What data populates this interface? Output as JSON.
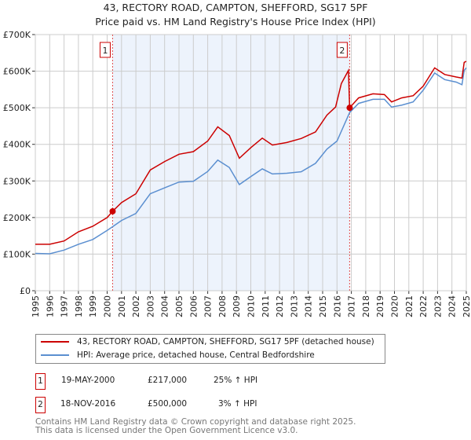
{
  "chart_data": {
    "type": "line",
    "title": "43, RECTORY ROAD, CAMPTON, SHEFFORD, SG17 5PF",
    "subtitle": "Price paid vs. HM Land Registry's House Price Index (HPI)",
    "xlim": [
      1995,
      2025
    ],
    "ylim": [
      0,
      700000
    ],
    "x_ticks": [
      "1995",
      "1996",
      "1997",
      "1998",
      "1999",
      "2000",
      "2001",
      "2002",
      "2003",
      "2004",
      "2005",
      "2006",
      "2007",
      "2008",
      "2009",
      "2010",
      "2011",
      "2012",
      "2013",
      "2014",
      "2015",
      "2016",
      "2017",
      "2018",
      "2019",
      "2020",
      "2021",
      "2022",
      "2023",
      "2024",
      "2025"
    ],
    "y_ticks": [
      {
        "value": 0,
        "label": "£0"
      },
      {
        "value": 100000,
        "label": "£100K"
      },
      {
        "value": 200000,
        "label": "£200K"
      },
      {
        "value": 300000,
        "label": "£300K"
      },
      {
        "value": 400000,
        "label": "£400K"
      },
      {
        "value": 500000,
        "label": "£500K"
      },
      {
        "value": 600000,
        "label": "£600K"
      },
      {
        "value": 700000,
        "label": "£700K"
      }
    ],
    "grid": true,
    "shaded_range": [
      2000.38,
      2016.88
    ],
    "series": [
      {
        "name": "43, RECTORY ROAD, CAMPTON, SHEFFORD, SG17 5PF (detached house)",
        "color": "#cc0000",
        "x": [
          1995,
          1996,
          1997,
          1998,
          1999,
          2000,
          2000.38,
          2001,
          2002,
          2003,
          2004,
          2005,
          2006,
          2007,
          2007.7,
          2008.5,
          2009.2,
          2010,
          2010.8,
          2011.5,
          2012.5,
          2013.5,
          2014.5,
          2015.3,
          2015.9,
          2016.3,
          2016.8,
          2016.88,
          2017.5,
          2018.5,
          2019.3,
          2019.8,
          2020.5,
          2021.3,
          2022,
          2022.8,
          2023.5,
          2024.3,
          2024.7,
          2024.85,
          2025
        ],
        "y": [
          127000,
          127000,
          136000,
          161000,
          176000,
          200000,
          217000,
          241000,
          265000,
          330000,
          353000,
          373000,
          380000,
          409000,
          448000,
          424000,
          362000,
          391000,
          417000,
          398000,
          405000,
          416000,
          434000,
          480000,
          502000,
          566000,
          602000,
          500000,
          527000,
          538000,
          536000,
          516000,
          527000,
          533000,
          559000,
          609000,
          591000,
          584000,
          581000,
          624000,
          627000
        ]
      },
      {
        "name": "HPI: Average price, detached house, Central Bedfordshire",
        "color": "#5b8fd0",
        "x": [
          1995,
          1996,
          1997,
          1998,
          1999,
          2000,
          2000.38,
          2001,
          2002,
          2003,
          2004,
          2005,
          2006,
          2007,
          2007.7,
          2008.5,
          2009.2,
          2010,
          2010.8,
          2011.5,
          2012.5,
          2013.5,
          2014.5,
          2015.3,
          2016,
          2016.88,
          2017.5,
          2018.5,
          2019.3,
          2019.8,
          2020.5,
          2021.3,
          2022,
          2022.8,
          2023.5,
          2024.3,
          2024.7,
          2024.85,
          2025
        ],
        "y": [
          102000,
          101000,
          111000,
          127000,
          140000,
          165000,
          175000,
          192000,
          211000,
          265000,
          281000,
          297000,
          299000,
          326000,
          357000,
          337000,
          290000,
          312000,
          333000,
          319000,
          321000,
          325000,
          348000,
          387000,
          409000,
          487000,
          512000,
          523000,
          523000,
          502000,
          507000,
          516000,
          548000,
          595000,
          577000,
          570000,
          563000,
          602000,
          609000
        ]
      }
    ],
    "sales": [
      {
        "id": "1",
        "x": 2000.38,
        "y": 217000,
        "date": "19-MAY-2000",
        "price": "£217,000",
        "hpi": "25% ↑ HPI"
      },
      {
        "id": "2",
        "x": 2016.88,
        "y": 500000,
        "date": "18-NOV-2016",
        "price": "£500,000",
        "hpi": "3% ↑ HPI"
      }
    ]
  },
  "legend": {
    "property": "43, RECTORY ROAD, CAMPTON, SHEFFORD, SG17 5PF (detached house)",
    "hpi": "HPI: Average price, detached house, Central Bedfordshire"
  },
  "footer": {
    "line1": "Contains HM Land Registry data © Crown copyright and database right 2025.",
    "line2": "This data is licensed under the Open Government Licence v3.0."
  }
}
